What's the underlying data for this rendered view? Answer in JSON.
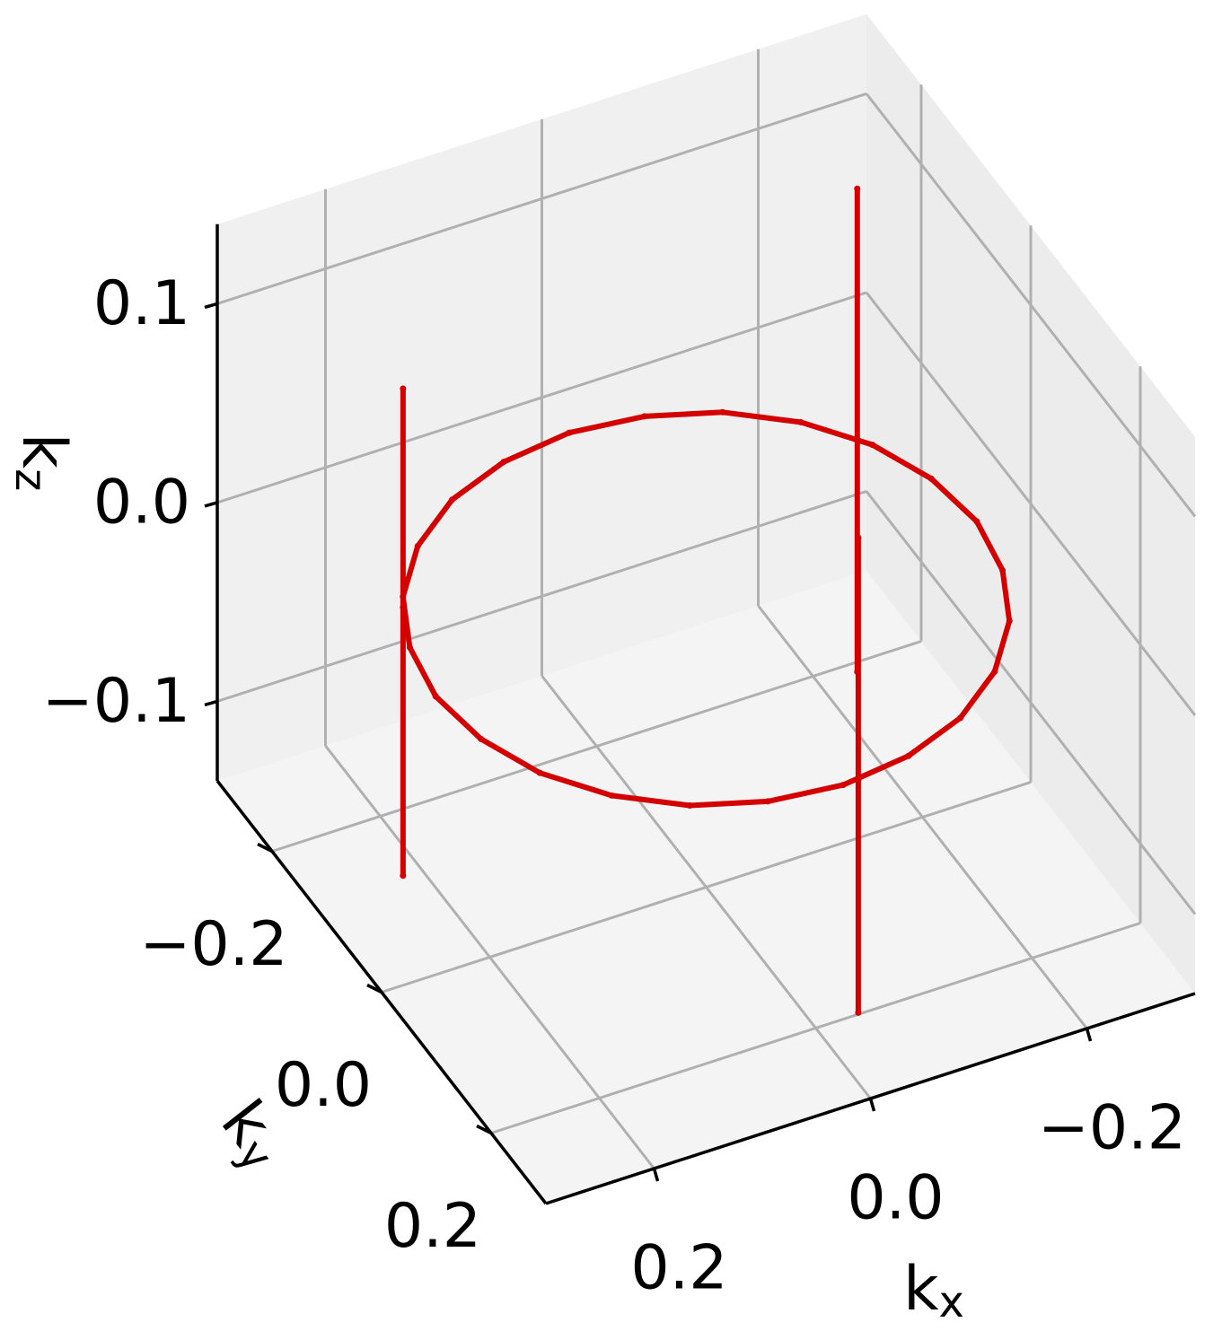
{
  "chart_data": {
    "type": "scatter3d",
    "xlabel": {
      "base": "k",
      "sub": "x"
    },
    "ylabel": {
      "base": "k",
      "sub": "y"
    },
    "zlabel": {
      "base": "k",
      "sub": "z"
    },
    "xlim": [
      -0.3,
      0.3
    ],
    "ylim": [
      -0.3,
      0.3
    ],
    "zlim": [
      -0.14,
      0.14
    ],
    "xticks": [
      {
        "value": -0.2,
        "label": "−0.2"
      },
      {
        "value": 0,
        "label": "0.0"
      },
      {
        "value": 0.2,
        "label": "0.2"
      }
    ],
    "yticks": [
      {
        "value": -0.2,
        "label": "−0.2"
      },
      {
        "value": 0,
        "label": "0.0"
      },
      {
        "value": 0.2,
        "label": "0.2"
      }
    ],
    "zticks": [
      {
        "value": -0.1,
        "label": "−0.1"
      },
      {
        "value": 0,
        "label": "0.0"
      },
      {
        "value": 0.1,
        "label": "0.1"
      }
    ],
    "grid": true,
    "series": [
      {
        "color": "#d40000",
        "x": [
          0.25,
          0.241,
          0.217,
          0.177,
          0.125,
          0.065,
          0,
          -0.065,
          -0.125,
          -0.177,
          -0.217,
          -0.241,
          -0.25,
          -0.241,
          -0.217,
          -0.177,
          -0.125,
          -0.065,
          0,
          0.065,
          0.125,
          0.177,
          0.217,
          0.241,
          0.25
        ],
        "y": [
          0,
          0.065,
          0.125,
          0.177,
          0.217,
          0.241,
          0.25,
          0.241,
          0.217,
          0.177,
          0.125,
          0.065,
          0,
          -0.065,
          -0.125,
          -0.177,
          -0.217,
          -0.241,
          -0.25,
          -0.241,
          -0.217,
          -0.177,
          -0.125,
          -0.065,
          0
        ],
        "z": [
          0,
          0,
          0,
          0,
          0,
          0,
          0,
          0,
          0,
          0,
          0,
          0,
          0,
          0,
          0,
          0,
          0,
          0,
          0,
          0,
          0,
          0,
          0,
          0,
          0
        ]
      },
      {
        "color": "#d40000",
        "x": [
          0.223,
          0.223,
          0.223
        ],
        "y": [
          -0.113,
          -0.113,
          -0.113
        ],
        "z": [
          -0.135,
          0,
          0.11
        ]
      },
      {
        "color": "#d40000",
        "x": [
          -0.209,
          -0.209,
          -0.209
        ],
        "y": [
          -0.137,
          -0.137,
          -0.137
        ],
        "z": [
          -0.117,
          0,
          0.126
        ]
      },
      {
        "color": "#d40000",
        "x": [
          -0.014,
          -0.014,
          -0.014
        ],
        "y": [
          0.25,
          0.25,
          0.25
        ],
        "z": [
          -0.117,
          0,
          0.122
        ]
      }
    ]
  }
}
